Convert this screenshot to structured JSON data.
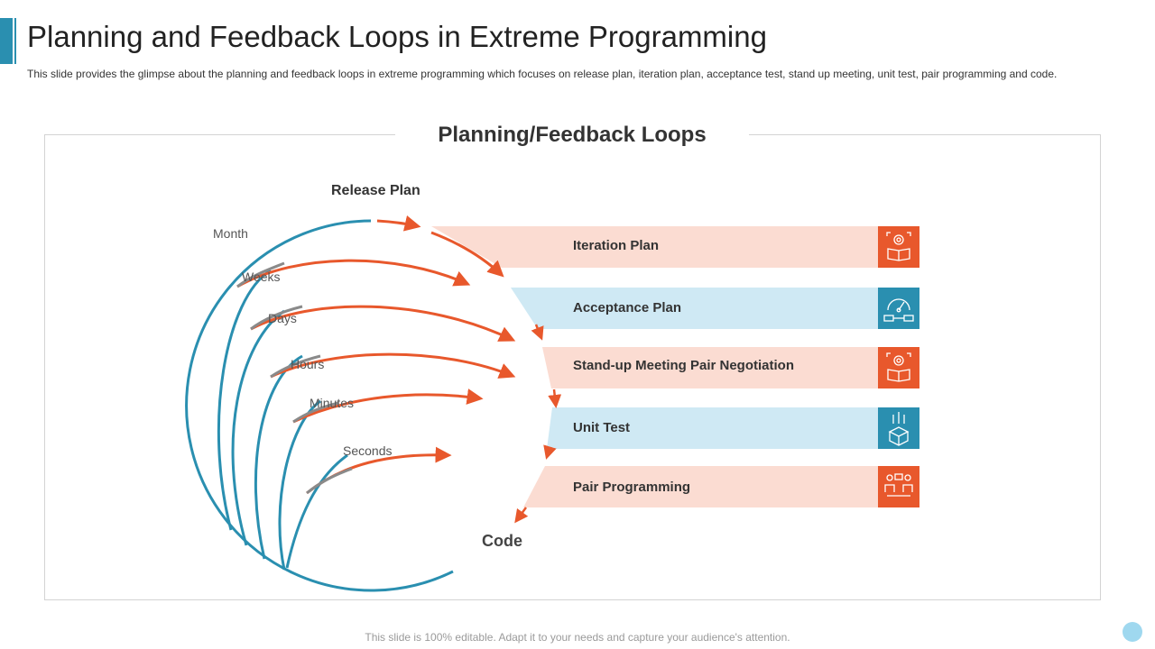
{
  "slide": {
    "title": "Planning and Feedback Loops in Extreme Programming",
    "subtitle": "This slide provides the glimpse about the planning and feedback loops in extreme programming which focuses on release plan, iteration plan, acceptance test, stand up meeting, unit test, pair programming and code.",
    "footer": "This slide is 100% editable. Adapt it to your needs and capture your audience's attention."
  },
  "diagram": {
    "heading": "Planning/Feedback Loops",
    "top_label": "Release Plan",
    "bottom_label": "Code",
    "time_scales": [
      "Month",
      "Weeks",
      "Days",
      "Hours",
      "Minutes",
      "Seconds"
    ],
    "steps": [
      {
        "label": "Iteration Plan",
        "icon": "gear-book-icon"
      },
      {
        "label": "Acceptance Plan",
        "icon": "gauge-icon"
      },
      {
        "label": "Stand-up Meeting Pair Negotiation",
        "icon": "gear-book-icon"
      },
      {
        "label": "Unit Test",
        "icon": "box-icon"
      },
      {
        "label": "Pair Programming",
        "icon": "pair-people-icon"
      }
    ],
    "colors": {
      "orange": "#e8582c",
      "teal": "#2a8fb0",
      "peach": "#fbdcd2",
      "light_blue": "#cfe9f4",
      "gray": "#8a8a8a"
    }
  }
}
